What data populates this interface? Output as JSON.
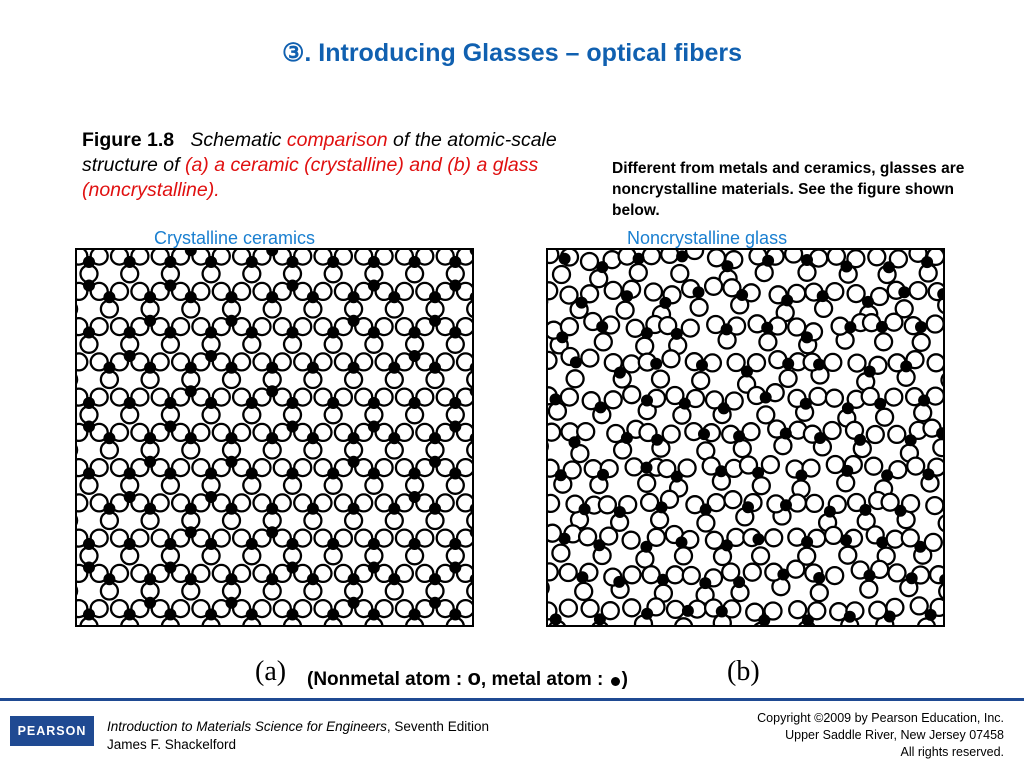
{
  "slide": {
    "title_marker": "③",
    "title": ". Introducing Glasses – optical fibers",
    "caption": {
      "figure_label": "Figure 1.8",
      "part1": "Schematic ",
      "part2": "comparison",
      "part3": " of the atomic-scale structure of ",
      "part4": "(a) a ceramic (crystalline) and (b) a glass (noncrystalline)."
    },
    "side_text": "Different from metals and ceramics, glasses are noncrystalline materials. See the figure shown below.",
    "panel_a_label": "Crystalline ceramics",
    "panel_b_label": "Noncrystalline glass",
    "sub_a": "(a)",
    "sub_b": "(b)",
    "legend": {
      "prefix": "(Nonmetal atom : ",
      "open_symbol": "o",
      "middle": ",  metal atom : ",
      "suffix": ")"
    }
  },
  "footer": {
    "logo": "PEARSON",
    "book_title": "Introduction to Materials Science for Engineers",
    "edition": ", Seventh Edition",
    "author": "James F. Shackelford",
    "copyright": "Copyright ©2009 by Pearson Education, Inc.",
    "address": "Upper Saddle River, New Jersey 07458",
    "rights": "All rights reserved."
  },
  "colors": {
    "title": "#1060b0",
    "emphasis": "#e01010",
    "panel_labels": "#1a7fd0",
    "footer_rule": "#1f4a92"
  }
}
